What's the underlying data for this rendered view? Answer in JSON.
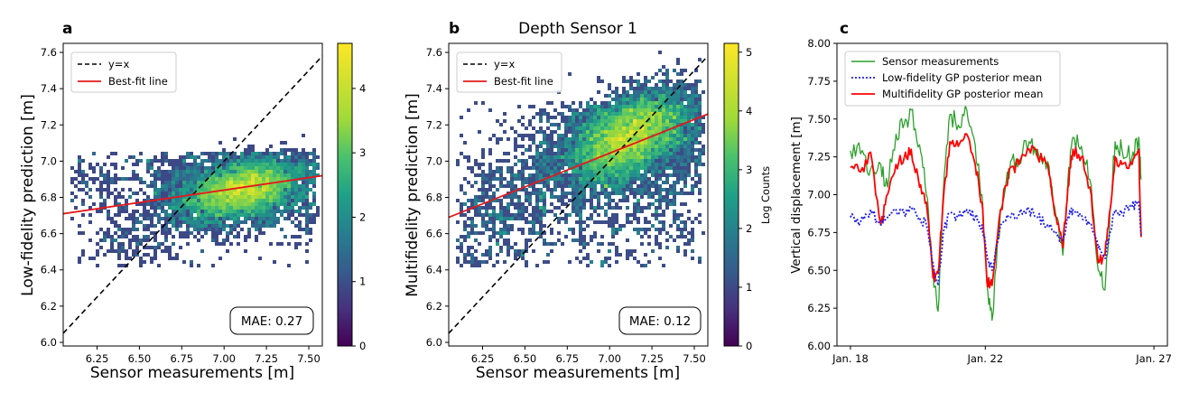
{
  "chart_data": [
    {
      "panel": "a",
      "type": "heatmap",
      "title": "",
      "xlabel": "Sensor measurements [m]",
      "ylabel": "Low-fidelity prediction [m]",
      "xlim": [
        6.05,
        7.58
      ],
      "ylim": [
        5.98,
        7.65
      ],
      "xticks": [
        "6.25",
        "6.50",
        "6.75",
        "7.00",
        "7.25",
        "7.50"
      ],
      "xtick_values": [
        6.25,
        6.5,
        6.75,
        7.0,
        7.25,
        7.5
      ],
      "yticks": [
        "6.0",
        "6.2",
        "6.4",
        "6.6",
        "6.8",
        "7.0",
        "7.2",
        "7.4",
        "7.6"
      ],
      "ytick_values": [
        6.0,
        6.2,
        6.4,
        6.6,
        6.8,
        7.0,
        7.2,
        7.4,
        7.6
      ],
      "legend": [
        "y=x",
        "Best-fit line"
      ],
      "best_fit": {
        "x": [
          6.05,
          7.58
        ],
        "y": [
          6.71,
          6.92
        ]
      },
      "density_center": [
        7.15,
        6.85
      ],
      "mae_label": "MAE: 0.27",
      "colorbar": {
        "label": "",
        "ticks": [
          "0",
          "1",
          "2",
          "3",
          "4"
        ],
        "tick_values": [
          0,
          1,
          2,
          3,
          4
        ],
        "max": 4.7
      }
    },
    {
      "panel": "b",
      "type": "heatmap",
      "title": "Depth Sensor 1",
      "xlabel": "Sensor measurements [m]",
      "ylabel": "Multifidelity prediction [m]",
      "xlim": [
        6.05,
        7.58
      ],
      "ylim": [
        5.98,
        7.65
      ],
      "xticks": [
        "6.25",
        "6.50",
        "6.75",
        "7.00",
        "7.25",
        "7.50"
      ],
      "xtick_values": [
        6.25,
        6.5,
        6.75,
        7.0,
        7.25,
        7.5
      ],
      "yticks": [
        "6.0",
        "6.2",
        "6.4",
        "6.6",
        "6.8",
        "7.0",
        "7.2",
        "7.4",
        "7.6"
      ],
      "ytick_values": [
        6.0,
        6.2,
        6.4,
        6.6,
        6.8,
        7.0,
        7.2,
        7.4,
        7.6
      ],
      "legend": [
        "y=x",
        "Best-fit line"
      ],
      "best_fit": {
        "x": [
          6.05,
          7.58
        ],
        "y": [
          6.69,
          7.26
        ]
      },
      "density_center": [
        7.15,
        7.15
      ],
      "mae_label": "MAE: 0.12",
      "colorbar": {
        "label": "Log Counts",
        "ticks": [
          "0",
          "1",
          "2",
          "3",
          "4",
          "5"
        ],
        "tick_values": [
          0,
          1,
          2,
          3,
          4,
          5
        ],
        "max": 5.15
      }
    },
    {
      "panel": "c",
      "type": "line",
      "title": "",
      "xlabel": "",
      "ylabel": "Vertical displacement [m]",
      "xlim": [
        17.6,
        27.4
      ],
      "ylim": [
        6.0,
        8.0
      ],
      "xticks": [
        "Jan. 18",
        "Jan. 22",
        "Jan. 27"
      ],
      "xtick_values": [
        18,
        22,
        27
      ],
      "yticks": [
        "6.00",
        "6.25",
        "6.50",
        "6.75",
        "7.00",
        "7.25",
        "7.50",
        "7.75",
        "8.00"
      ],
      "ytick_values": [
        6.0,
        6.25,
        6.5,
        6.75,
        7.0,
        7.25,
        7.5,
        7.75,
        8.0
      ],
      "series": [
        {
          "name": "Sensor measurements",
          "color": "#2ca02c",
          "style": "solid",
          "x": [
            18.0,
            18.3,
            18.6,
            18.9,
            19.1,
            19.35,
            19.6,
            19.8,
            20.05,
            20.25,
            20.45,
            20.6,
            20.75,
            20.95,
            21.2,
            21.45,
            21.7,
            21.9,
            22.05,
            22.2,
            22.45,
            22.75,
            23.0,
            23.3,
            23.55,
            23.85,
            24.1,
            24.3,
            24.45,
            24.6,
            24.85,
            25.1,
            25.35,
            25.55,
            25.7,
            25.85,
            26.05,
            26.35,
            26.55,
            26.62
          ],
          "values": [
            7.29,
            7.27,
            7.17,
            7.2,
            7.05,
            7.4,
            7.47,
            7.56,
            7.33,
            7.0,
            6.5,
            6.23,
            7.0,
            7.53,
            7.46,
            7.56,
            7.33,
            7.0,
            6.4,
            6.17,
            6.9,
            7.22,
            7.23,
            7.35,
            7.3,
            7.22,
            6.85,
            6.6,
            7.1,
            7.38,
            7.32,
            7.1,
            6.5,
            6.37,
            6.9,
            7.35,
            7.3,
            7.25,
            7.38,
            7.1
          ]
        },
        {
          "name": "Low-fidelity GP posterior mean",
          "color": "#1f1fe6",
          "style": "dotted",
          "x": [
            18.0,
            18.3,
            18.6,
            18.9,
            19.1,
            19.35,
            19.6,
            19.8,
            20.05,
            20.25,
            20.45,
            20.6,
            20.75,
            20.95,
            21.2,
            21.45,
            21.7,
            21.9,
            22.05,
            22.2,
            22.45,
            22.75,
            23.0,
            23.3,
            23.55,
            23.85,
            24.1,
            24.3,
            24.45,
            24.6,
            24.85,
            25.1,
            25.35,
            25.55,
            25.7,
            25.85,
            26.05,
            26.35,
            26.55,
            26.62
          ],
          "values": [
            6.85,
            6.82,
            6.9,
            6.8,
            6.85,
            6.9,
            6.87,
            6.92,
            6.85,
            6.8,
            6.55,
            6.4,
            6.75,
            6.88,
            6.85,
            6.9,
            6.85,
            6.8,
            6.6,
            6.5,
            6.8,
            6.85,
            6.87,
            6.9,
            6.85,
            6.8,
            6.75,
            6.7,
            6.85,
            6.9,
            6.87,
            6.8,
            6.65,
            6.58,
            6.75,
            6.9,
            6.88,
            6.92,
            6.95,
            6.72
          ]
        },
        {
          "name": "Multifidelity GP posterior mean",
          "color": "#ff0000",
          "style": "solid",
          "x": [
            18.0,
            18.3,
            18.6,
            18.9,
            19.1,
            19.35,
            19.6,
            19.8,
            20.05,
            20.25,
            20.45,
            20.6,
            20.75,
            20.95,
            21.2,
            21.45,
            21.7,
            21.9,
            22.05,
            22.2,
            22.45,
            22.75,
            23.0,
            23.3,
            23.55,
            23.85,
            24.1,
            24.3,
            24.45,
            24.6,
            24.85,
            25.1,
            25.35,
            25.55,
            25.7,
            25.85,
            26.05,
            26.35,
            26.55,
            26.62
          ],
          "values": [
            7.18,
            7.15,
            7.28,
            6.8,
            7.0,
            7.2,
            7.25,
            7.3,
            7.05,
            6.95,
            6.45,
            6.48,
            6.95,
            7.35,
            7.32,
            7.4,
            7.2,
            6.95,
            6.42,
            6.4,
            6.9,
            7.18,
            7.2,
            7.3,
            7.25,
            7.2,
            6.85,
            6.65,
            7.05,
            7.3,
            7.25,
            7.05,
            6.55,
            6.6,
            6.9,
            7.25,
            7.2,
            7.2,
            7.3,
            6.72
          ]
        }
      ]
    }
  ],
  "panels": {
    "a": {
      "letter": "a"
    },
    "b": {
      "letter": "b"
    },
    "c": {
      "letter": "c"
    }
  },
  "colors": {
    "diag": "#000000",
    "fit": "#e31a1c",
    "frame": "#000000"
  }
}
